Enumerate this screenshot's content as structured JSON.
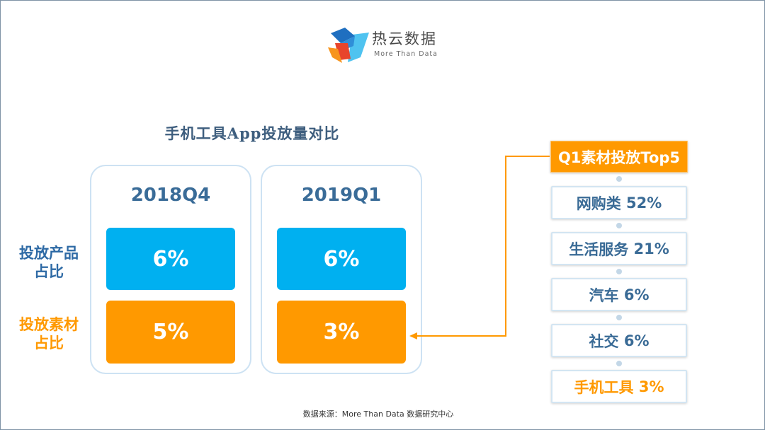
{
  "logo": {
    "brand": "热云数据",
    "tagline": "More Than Data"
  },
  "title": "手机工具App投放量对比",
  "row_labels": {
    "product": {
      "line1": "投放产品",
      "line2": "占比"
    },
    "material": {
      "line1": "投放素材",
      "line2": "占比"
    }
  },
  "periods": [
    {
      "name": "2018Q4",
      "product_share": "6%",
      "material_share": "5%"
    },
    {
      "name": "2019Q1",
      "product_share": "6%",
      "material_share": "3%"
    }
  ],
  "top5": {
    "title": "Q1素材投放Top5",
    "items": [
      {
        "category": "网购类",
        "share": "52%",
        "highlighted": false
      },
      {
        "category": "生活服务",
        "share": "21%",
        "highlighted": false
      },
      {
        "category": "汽车",
        "share": "6%",
        "highlighted": false
      },
      {
        "category": "社交",
        "share": "6%",
        "highlighted": false
      },
      {
        "category": "手机工具",
        "share": "3%",
        "highlighted": true
      }
    ]
  },
  "footer": {
    "source": "数据来源：More Than Data 数据研究中心"
  },
  "colors": {
    "product_blue": "#00b0f0",
    "material_orange": "#ff9900",
    "heading_blue": "#3a6c98",
    "card_border": "#cde2f3"
  }
}
